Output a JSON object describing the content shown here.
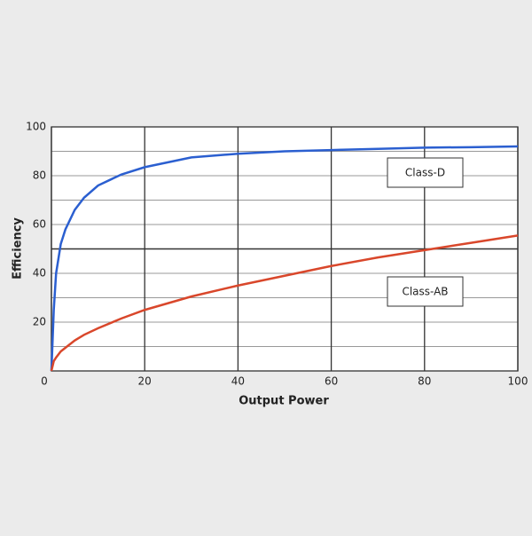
{
  "chart_data": {
    "type": "line",
    "x_label": "Output Power",
    "y_label": "Efficiency",
    "x": [
      0,
      0.5,
      1,
      2,
      3,
      5,
      7,
      10,
      15,
      20,
      30,
      40,
      50,
      60,
      70,
      80,
      90,
      100
    ],
    "series": [
      {
        "name": "Class-D",
        "color": "#2b5fd0",
        "values": [
          0,
          25,
          40,
          52,
          58,
          66,
          71,
          76,
          80.5,
          83.5,
          87.5,
          89,
          90,
          90.5,
          91,
          91.5,
          91.7,
          92
        ]
      },
      {
        "name": "Class-AB",
        "color": "#d9472b",
        "values": [
          0,
          4,
          5.5,
          8,
          9.5,
          12.5,
          14.8,
          17.5,
          21.5,
          25,
          30.5,
          35,
          39,
          43,
          46.5,
          49.5,
          52.5,
          55.5
        ]
      }
    ],
    "xlim": [
      0,
      100
    ],
    "ylim": [
      0,
      100
    ],
    "xticks": [
      0,
      20,
      40,
      60,
      80,
      100
    ],
    "yticks": [
      20,
      40,
      60,
      80,
      100
    ],
    "y_minor_ticks": [
      10,
      30,
      50,
      70,
      90
    ],
    "reference_line": 50,
    "grid": true
  }
}
